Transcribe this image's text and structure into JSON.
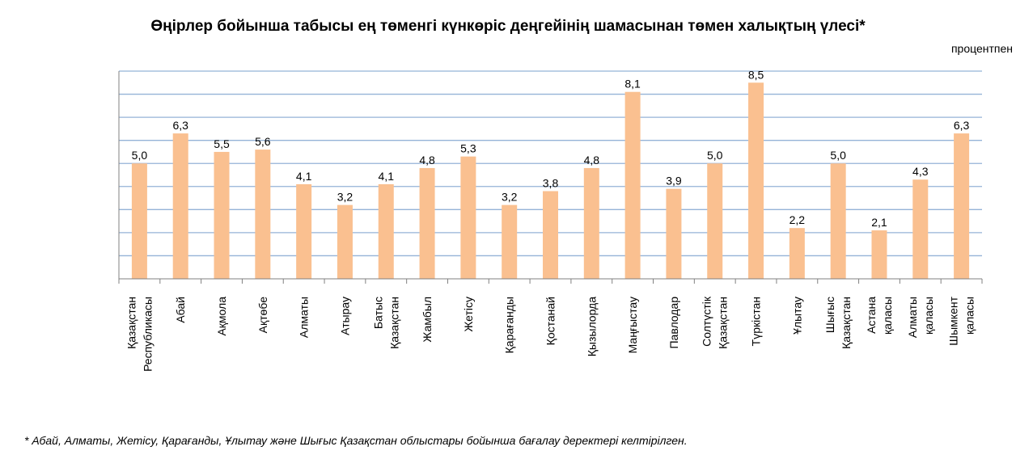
{
  "chart_data": {
    "type": "bar",
    "title": "Өңірлер бойынша табысы ең төменгі күнкөріс деңгейінің шамасынан төмен халықтың үлесі*",
    "unit": "процентпен",
    "categories": [
      [
        "Қазақстан",
        "Республикасы"
      ],
      [
        "Абай"
      ],
      [
        "Ақмола"
      ],
      [
        "Ақтөбе"
      ],
      [
        "Алматы"
      ],
      [
        "Атырау"
      ],
      [
        "Батыс",
        "Қазақстан"
      ],
      [
        "Жамбыл"
      ],
      [
        "Жетісу"
      ],
      [
        "Қарағанды"
      ],
      [
        "Қостанай"
      ],
      [
        "Қызылорда"
      ],
      [
        "Маңғыстау"
      ],
      [
        "Павлодар"
      ],
      [
        "Солтүстік",
        "Қазақстан"
      ],
      [
        "Түркістан"
      ],
      [
        "Ұлытау"
      ],
      [
        "Шығыс",
        "Қазақстан"
      ],
      [
        "Астана",
        "қаласы"
      ],
      [
        "Алматы",
        "қаласы"
      ],
      [
        "Шымкент",
        "қаласы"
      ]
    ],
    "values": [
      5.0,
      6.3,
      5.5,
      5.6,
      4.1,
      3.2,
      4.1,
      4.8,
      5.3,
      3.2,
      3.8,
      4.8,
      8.1,
      3.9,
      5.0,
      8.5,
      2.2,
      5.0,
      2.1,
      4.3,
      6.3
    ],
    "value_labels": [
      "5,0",
      "6,3",
      "5,5",
      "5,6",
      "4,1",
      "3,2",
      "4,1",
      "4,8",
      "5,3",
      "3,2",
      "3,8",
      "4,8",
      "8,1",
      "3,9",
      "5,0",
      "8,5",
      "2,2",
      "5,0",
      "2,1",
      "4,3",
      "6,3"
    ],
    "ylim": [
      0,
      9
    ],
    "grid": true,
    "bar_color": "#FAC090",
    "grid_color": "#95B3D7",
    "axis_color": "#808080"
  },
  "footnote": "* Абай,  Алматы, Жетісу, Қарағанды,  Ұлытау және Шығыс  Қазақстан облыстары бойынша бағалау деректері келтірілген."
}
